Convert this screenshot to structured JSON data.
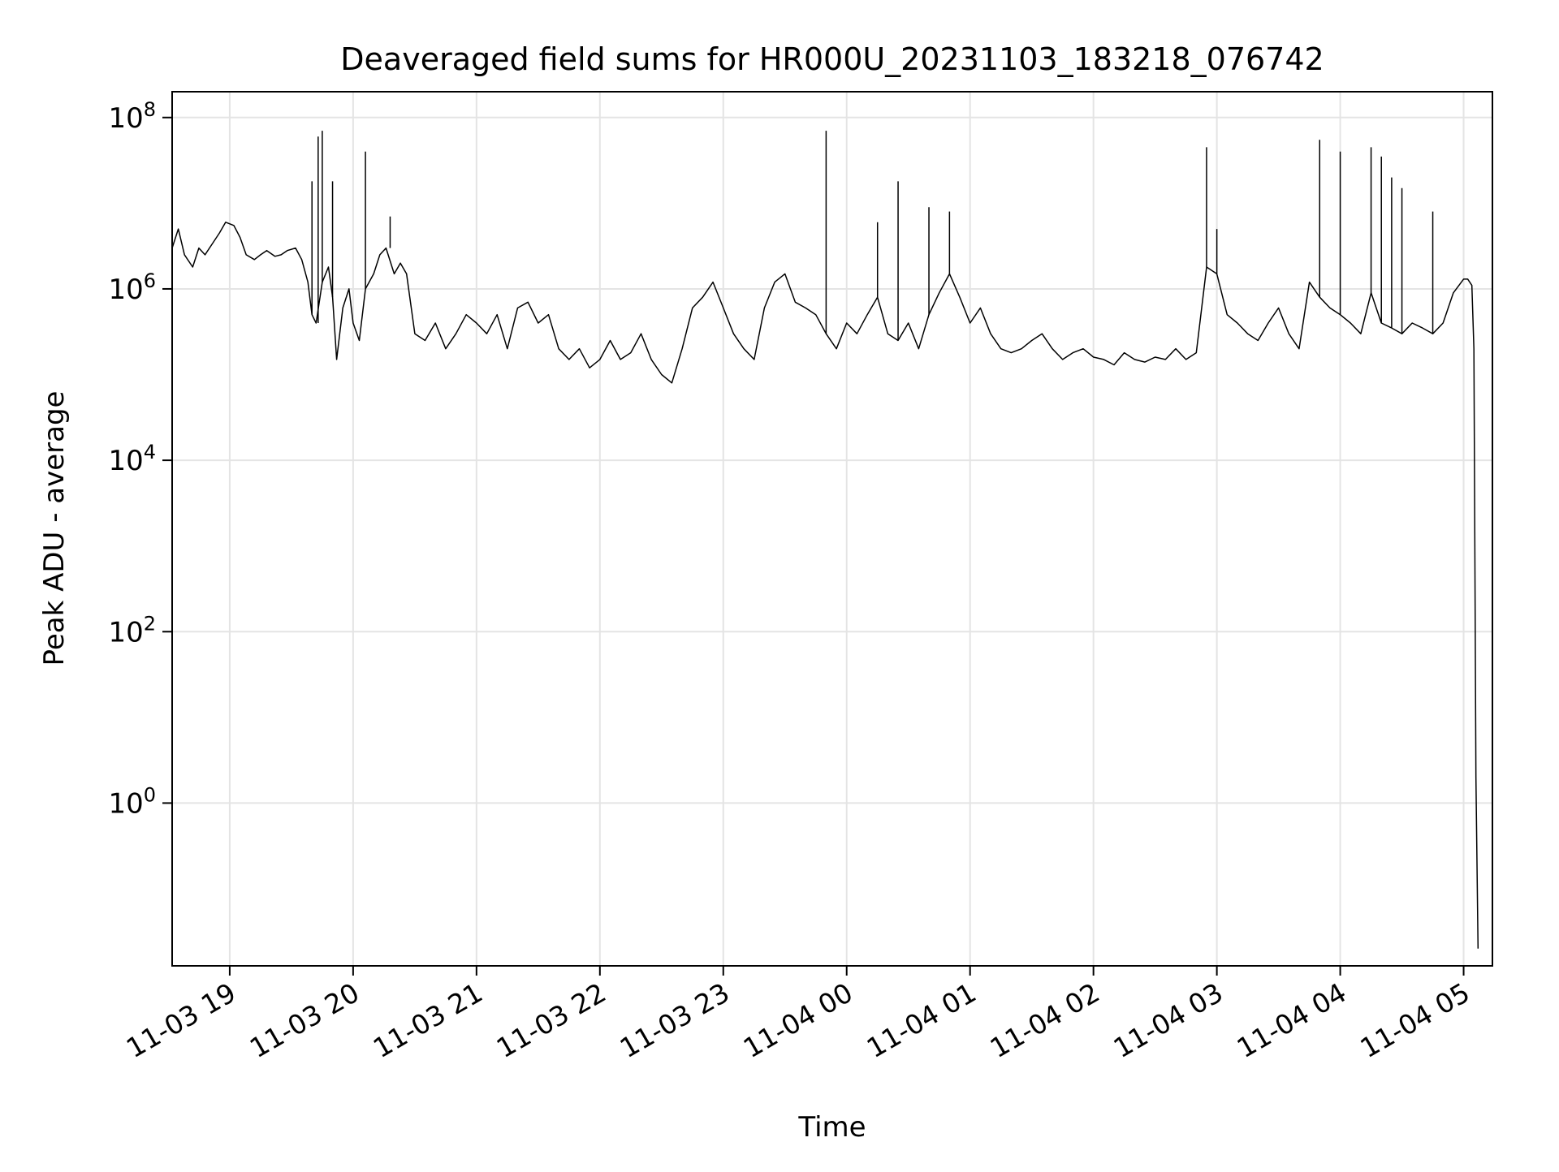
{
  "chart_data": {
    "type": "line",
    "title": "Deaveraged field sums for HR000U_20231103_183218_076742",
    "xlabel": "Time",
    "ylabel": "Peak ADU - average",
    "yscale": "log",
    "ylim": [
      0.0126,
      200000000
    ],
    "xlim": [
      "2023-11-03 18:32",
      "2023-11-04 05:14"
    ],
    "grid": true,
    "line_color": "#000000",
    "x_ticks": [
      {
        "value": "2023-11-03 19:00",
        "label": "11-03 19"
      },
      {
        "value": "2023-11-03 20:00",
        "label": "11-03 20"
      },
      {
        "value": "2023-11-03 21:00",
        "label": "11-03 21"
      },
      {
        "value": "2023-11-03 22:00",
        "label": "11-03 22"
      },
      {
        "value": "2023-11-03 23:00",
        "label": "11-03 23"
      },
      {
        "value": "2023-11-04 00:00",
        "label": "11-04 00"
      },
      {
        "value": "2023-11-04 01:00",
        "label": "11-04 01"
      },
      {
        "value": "2023-11-04 02:00",
        "label": "11-04 02"
      },
      {
        "value": "2023-11-04 03:00",
        "label": "11-04 03"
      },
      {
        "value": "2023-11-04 04:00",
        "label": "11-04 04"
      },
      {
        "value": "2023-11-04 05:00",
        "label": "11-04 05"
      }
    ],
    "y_ticks": [
      {
        "value": 1,
        "base": "10",
        "exp": "0"
      },
      {
        "value": 100,
        "base": "10",
        "exp": "2"
      },
      {
        "value": 10000,
        "base": "10",
        "exp": "4"
      },
      {
        "value": 1000000,
        "base": "10",
        "exp": "6"
      },
      {
        "value": 100000000,
        "base": "10",
        "exp": "8"
      }
    ],
    "series": [
      {
        "x": [
          "2023-11-03 18:32",
          "2023-11-03 18:35",
          "2023-11-03 18:38",
          "2023-11-03 18:42",
          "2023-11-03 18:45",
          "2023-11-03 18:48",
          "2023-11-03 18:52",
          "2023-11-03 18:55",
          "2023-11-03 18:58",
          "2023-11-03 19:02",
          "2023-11-03 19:05",
          "2023-11-03 19:08",
          "2023-11-03 19:12",
          "2023-11-03 19:15",
          "2023-11-03 19:18",
          "2023-11-03 19:22",
          "2023-11-03 19:25",
          "2023-11-03 19:28",
          "2023-11-03 19:32",
          "2023-11-03 19:35",
          "2023-11-03 19:38",
          "2023-11-03 19:40",
          "2023-11-03 19:42",
          "2023-11-03 19:45",
          "2023-11-03 19:48",
          "2023-11-03 19:50",
          "2023-11-03 19:52",
          "2023-11-03 19:55",
          "2023-11-03 19:58",
          "2023-11-03 20:00",
          "2023-11-03 20:03",
          "2023-11-03 20:06",
          "2023-11-03 20:10",
          "2023-11-03 20:13",
          "2023-11-03 20:16",
          "2023-11-03 20:20",
          "2023-11-03 20:23",
          "2023-11-03 20:26",
          "2023-11-03 20:30",
          "2023-11-03 20:35",
          "2023-11-03 20:40",
          "2023-11-03 20:45",
          "2023-11-03 20:50",
          "2023-11-03 20:55",
          "2023-11-03 21:00",
          "2023-11-03 21:05",
          "2023-11-03 21:10",
          "2023-11-03 21:15",
          "2023-11-03 21:20",
          "2023-11-03 21:25",
          "2023-11-03 21:30",
          "2023-11-03 21:35",
          "2023-11-03 21:40",
          "2023-11-03 21:45",
          "2023-11-03 21:50",
          "2023-11-03 21:55",
          "2023-11-03 22:00",
          "2023-11-03 22:05",
          "2023-11-03 22:10",
          "2023-11-03 22:15",
          "2023-11-03 22:20",
          "2023-11-03 22:25",
          "2023-11-03 22:30",
          "2023-11-03 22:35",
          "2023-11-03 22:40",
          "2023-11-03 22:45",
          "2023-11-03 22:50",
          "2023-11-03 22:55",
          "2023-11-03 23:00",
          "2023-11-03 23:05",
          "2023-11-03 23:10",
          "2023-11-03 23:15",
          "2023-11-03 23:20",
          "2023-11-03 23:25",
          "2023-11-03 23:30",
          "2023-11-03 23:35",
          "2023-11-03 23:40",
          "2023-11-03 23:45",
          "2023-11-03 23:50",
          "2023-11-03 23:55",
          "2023-11-04 00:00",
          "2023-11-04 00:05",
          "2023-11-04 00:10",
          "2023-11-04 00:15",
          "2023-11-04 00:20",
          "2023-11-04 00:25",
          "2023-11-04 00:30",
          "2023-11-04 00:35",
          "2023-11-04 00:40",
          "2023-11-04 00:45",
          "2023-11-04 00:50",
          "2023-11-04 00:55",
          "2023-11-04 01:00",
          "2023-11-04 01:05",
          "2023-11-04 01:10",
          "2023-11-04 01:15",
          "2023-11-04 01:20",
          "2023-11-04 01:25",
          "2023-11-04 01:30",
          "2023-11-04 01:35",
          "2023-11-04 01:40",
          "2023-11-04 01:45",
          "2023-11-04 01:50",
          "2023-11-04 01:55",
          "2023-11-04 02:00",
          "2023-11-04 02:05",
          "2023-11-04 02:10",
          "2023-11-04 02:15",
          "2023-11-04 02:20",
          "2023-11-04 02:25",
          "2023-11-04 02:30",
          "2023-11-04 02:35",
          "2023-11-04 02:40",
          "2023-11-04 02:45",
          "2023-11-04 02:50",
          "2023-11-04 02:55",
          "2023-11-04 03:00",
          "2023-11-04 03:05",
          "2023-11-04 03:10",
          "2023-11-04 03:15",
          "2023-11-04 03:20",
          "2023-11-04 03:25",
          "2023-11-04 03:30",
          "2023-11-04 03:35",
          "2023-11-04 03:40",
          "2023-11-04 03:45",
          "2023-11-04 03:50",
          "2023-11-04 03:55",
          "2023-11-04 04:00",
          "2023-11-04 04:05",
          "2023-11-04 04:10",
          "2023-11-04 04:15",
          "2023-11-04 04:20",
          "2023-11-04 04:25",
          "2023-11-04 04:30",
          "2023-11-04 04:35",
          "2023-11-04 04:40",
          "2023-11-04 04:45",
          "2023-11-04 04:50",
          "2023-11-04 04:55",
          "2023-11-04 05:00",
          "2023-11-04 05:02",
          "2023-11-04 05:04",
          "2023-11-04 05:05",
          "2023-11-04 05:06",
          "2023-11-04 05:07"
        ],
        "y": [
          3000000,
          5000000,
          2500000,
          1800000,
          3000000,
          2500000,
          3500000,
          4500000,
          6000000,
          5500000,
          4000000,
          2500000,
          2200000,
          2500000,
          2800000,
          2400000,
          2500000,
          2800000,
          3000000,
          2200000,
          1200000,
          500000,
          400000,
          1200000,
          1800000,
          800000,
          150000,
          600000,
          1000000,
          400000,
          250000,
          1000000,
          1500000,
          2500000,
          3000000,
          1500000,
          2000000,
          1500000,
          300000,
          250000,
          400000,
          200000,
          300000,
          500000,
          400000,
          300000,
          500000,
          200000,
          600000,
          700000,
          400000,
          500000,
          200000,
          150000,
          200000,
          120000,
          150000,
          250000,
          150000,
          180000,
          300000,
          150000,
          100000,
          80000,
          200000,
          600000,
          800000,
          1200000,
          600000,
          300000,
          200000,
          150000,
          600000,
          1200000,
          1500000,
          700000,
          600000,
          500000,
          300000,
          200000,
          400000,
          300000,
          500000,
          800000,
          300000,
          250000,
          400000,
          200000,
          500000,
          900000,
          1500000,
          800000,
          400000,
          600000,
          300000,
          200000,
          180000,
          200000,
          250000,
          300000,
          200000,
          150000,
          180000,
          200000,
          160000,
          150000,
          130000,
          180000,
          150000,
          140000,
          160000,
          150000,
          200000,
          150000,
          180000,
          1800000,
          1500000,
          500000,
          400000,
          300000,
          250000,
          400000,
          600000,
          300000,
          200000,
          1200000,
          800000,
          600000,
          500000,
          400000,
          300000,
          900000,
          400000,
          350000,
          300000,
          400000,
          350000,
          300000,
          400000,
          900000,
          1300000,
          1300000,
          1100000,
          200000,
          2,
          0.02
        ]
      }
    ],
    "spikes": [
      {
        "x": "2023-11-03 19:40",
        "y": 18000000
      },
      {
        "x": "2023-11-03 19:43",
        "y": 60000000
      },
      {
        "x": "2023-11-03 19:45",
        "y": 70000000
      },
      {
        "x": "2023-11-03 19:50",
        "y": 18000000
      },
      {
        "x": "2023-11-03 20:06",
        "y": 40000000
      },
      {
        "x": "2023-11-03 20:18",
        "y": 7000000
      },
      {
        "x": "2023-11-03 23:50",
        "y": 70000000
      },
      {
        "x": "2023-11-04 00:15",
        "y": 6000000
      },
      {
        "x": "2023-11-04 00:25",
        "y": 18000000
      },
      {
        "x": "2023-11-04 00:40",
        "y": 9000000
      },
      {
        "x": "2023-11-04 00:50",
        "y": 8000000
      },
      {
        "x": "2023-11-04 02:55",
        "y": 45000000
      },
      {
        "x": "2023-11-04 03:00",
        "y": 5000000
      },
      {
        "x": "2023-11-04 03:50",
        "y": 55000000
      },
      {
        "x": "2023-11-04 04:00",
        "y": 40000000
      },
      {
        "x": "2023-11-04 04:15",
        "y": 45000000
      },
      {
        "x": "2023-11-04 04:20",
        "y": 35000000
      },
      {
        "x": "2023-11-04 04:25",
        "y": 20000000
      },
      {
        "x": "2023-11-04 04:30",
        "y": 15000000
      },
      {
        "x": "2023-11-04 04:45",
        "y": 8000000
      }
    ]
  }
}
